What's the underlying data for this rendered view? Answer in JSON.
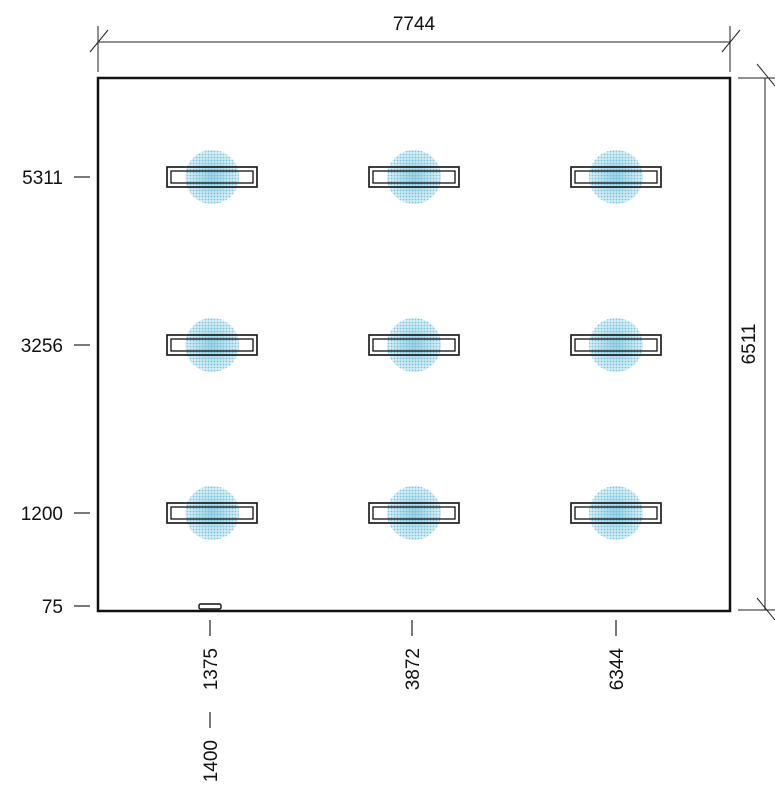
{
  "plan": {
    "room_width": "7744",
    "room_height": "6511",
    "x_labels": [
      "1375",
      "3872",
      "6344"
    ],
    "y_labels": [
      "5311",
      "3256",
      "1200",
      "75"
    ],
    "extra_x_label": "1400",
    "luminaire_grid": {
      "columns": 3,
      "rows": 3
    },
    "colors": {
      "wall": "#111111",
      "light_spread": "#9fd3e3",
      "light_core": "#6cbfd8"
    }
  }
}
